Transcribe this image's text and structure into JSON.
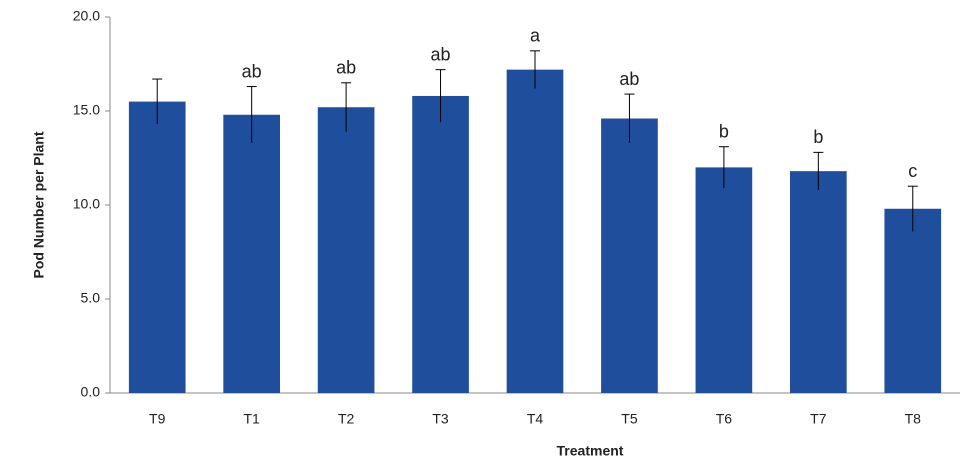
{
  "chart_data": {
    "type": "bar",
    "x_label": "Treatment",
    "y_label": "Pod Number per Plant",
    "categories": [
      "T9",
      "T1",
      "T2",
      "T3",
      "T4",
      "T5",
      "T6",
      "T7",
      "T8"
    ],
    "values": [
      15.5,
      14.8,
      15.2,
      15.8,
      17.2,
      14.6,
      12.0,
      11.8,
      9.8
    ],
    "errors": [
      1.2,
      1.5,
      1.3,
      1.4,
      1.0,
      1.3,
      1.1,
      1.0,
      1.2
    ],
    "letters": [
      null,
      "ab",
      "ab",
      "ab",
      "a",
      "ab",
      "b",
      "b",
      "c"
    ],
    "color": "#1f4e9c",
    "ylim": [
      0,
      20
    ],
    "yticks": [
      {
        "value": 0,
        "label": "0.0"
      },
      {
        "value": 5,
        "label": "5.0"
      },
      {
        "value": 10,
        "label": "10.0"
      },
      {
        "value": 15,
        "label": "15.0"
      },
      {
        "value": 20,
        "label": "20.0"
      }
    ],
    "grid": false
  }
}
